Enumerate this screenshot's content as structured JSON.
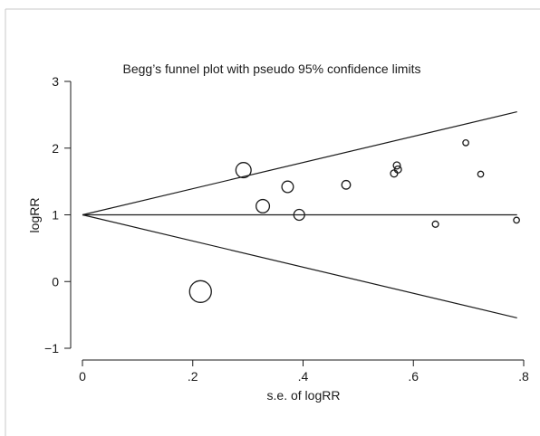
{
  "chart_data": {
    "type": "scatter",
    "title": "Begg’s funnel plot with pseudo 95% confidence limits",
    "xlabel": "s.e. of logRR",
    "ylabel": "logRR",
    "xlim": [
      0,
      0.8
    ],
    "ylim": [
      -1,
      3
    ],
    "x_ticks": [
      {
        "value": 0,
        "label": "0"
      },
      {
        "value": 0.2,
        "label": ".2"
      },
      {
        "value": 0.4,
        "label": ".4"
      },
      {
        "value": 0.6,
        "label": ".6"
      },
      {
        "value": 0.8,
        "label": ".8"
      }
    ],
    "y_ticks": [
      {
        "value": -1,
        "label": "−1"
      },
      {
        "value": 0,
        "label": "0"
      },
      {
        "value": 1,
        "label": "1"
      },
      {
        "value": 2,
        "label": "2"
      },
      {
        "value": 3,
        "label": "3"
      }
    ],
    "pooled_estimate": 1.0,
    "ci_multiplier": 1.96,
    "points": [
      {
        "se": 0.214,
        "logRR": -0.15
      },
      {
        "se": 0.292,
        "logRR": 1.67
      },
      {
        "se": 0.327,
        "logRR": 1.13
      },
      {
        "se": 0.372,
        "logRR": 1.42
      },
      {
        "se": 0.393,
        "logRR": 1.0
      },
      {
        "se": 0.478,
        "logRR": 1.45
      },
      {
        "se": 0.565,
        "logRR": 1.62
      },
      {
        "se": 0.57,
        "logRR": 1.74
      },
      {
        "se": 0.572,
        "logRR": 1.68
      },
      {
        "se": 0.64,
        "logRR": 0.86
      },
      {
        "se": 0.695,
        "logRR": 2.08
      },
      {
        "se": 0.722,
        "logRR": 1.61
      },
      {
        "se": 0.787,
        "logRR": 0.92
      }
    ],
    "grid": false,
    "legend": "none",
    "marker": "hollow circle sized by precision (1/se)",
    "colors": {
      "line": "#1a1a1a",
      "marker": "#1a1a1a",
      "background": "#ffffff"
    }
  }
}
